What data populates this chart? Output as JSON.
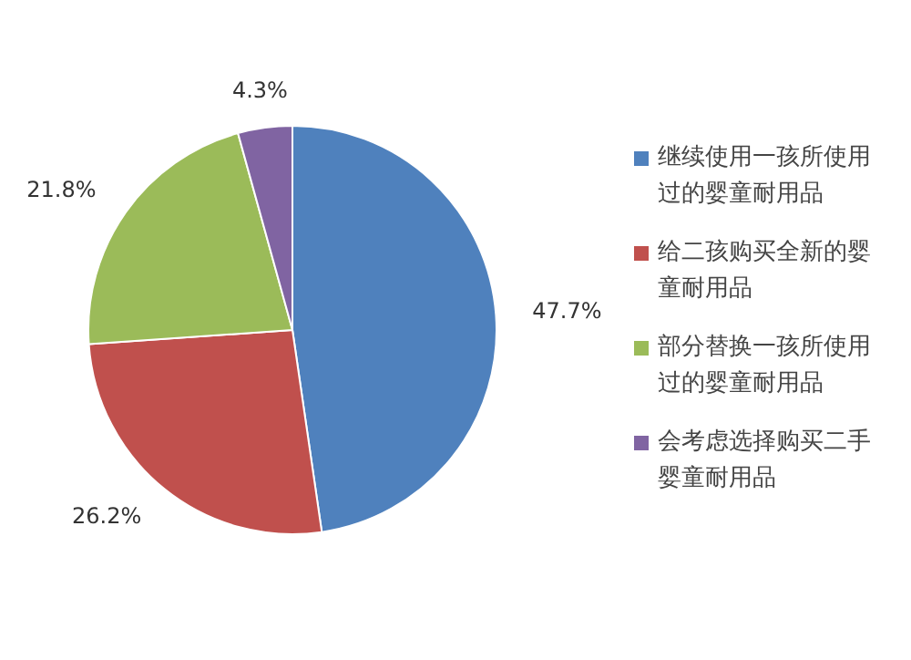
{
  "chart_data": {
    "type": "pie",
    "categories": [
      "继续使用一孩所使用过的婴童耐用品",
      "给二孩购买全新的婴童耐用品",
      "部分替换一孩所使用过的婴童耐用品",
      "会考虑选择购买二手婴童耐用品"
    ],
    "values": [
      47.7,
      26.2,
      21.8,
      4.3
    ],
    "colors": [
      "#4f81bd",
      "#c0504d",
      "#9bbb59",
      "#8064a2"
    ],
    "value_labels": [
      "47.7%",
      "26.2%",
      "21.8%",
      "4.3%"
    ],
    "legend": "right"
  }
}
